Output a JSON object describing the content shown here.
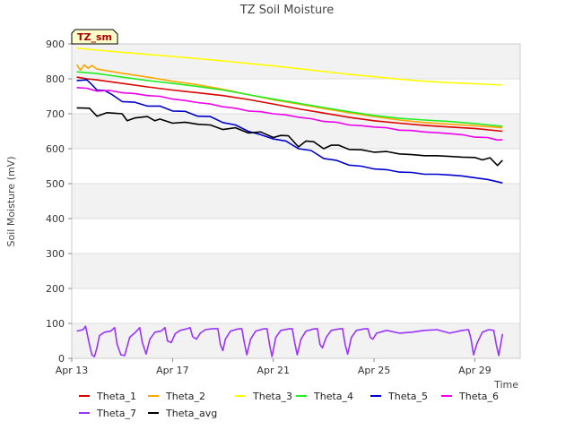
{
  "chart_data": {
    "type": "line",
    "title": "TZ Soil Moisture",
    "xlabel": "Time",
    "ylabel": "Soil Moisture (mV)",
    "badge": "TZ_sm",
    "ylim": [
      0,
      900
    ],
    "xlim": [
      13,
      30.8
    ],
    "yticks": [
      0,
      100,
      200,
      300,
      400,
      500,
      600,
      700,
      800,
      900
    ],
    "xticks": [
      {
        "value": 13,
        "label": "Apr 13"
      },
      {
        "value": 17,
        "label": "Apr 17"
      },
      {
        "value": 21,
        "label": "Apr 21"
      },
      {
        "value": 25,
        "label": "Apr 25"
      },
      {
        "value": 29,
        "label": "Apr 29"
      }
    ],
    "bands": [
      [
        0,
        100
      ],
      [
        200,
        300
      ],
      [
        400,
        500
      ],
      [
        600,
        700
      ],
      [
        800,
        900
      ]
    ],
    "series": [
      {
        "name": "Theta_1",
        "color": "#dd0000",
        "x": [
          13.2,
          13.6,
          14,
          15,
          16,
          17,
          18,
          19,
          20,
          21,
          22,
          23,
          24,
          25,
          26,
          27,
          28,
          29,
          30.1
        ],
        "y": [
          805,
          800,
          797,
          787,
          777,
          768,
          760,
          752,
          741,
          728,
          714,
          702,
          690,
          680,
          673,
          667,
          662,
          658,
          650
        ]
      },
      {
        "name": "Theta_2",
        "color": "#ffa500",
        "x": [
          13.2,
          13.35,
          13.5,
          13.65,
          13.8,
          14,
          15,
          16,
          17,
          18,
          19,
          20,
          21,
          22,
          23,
          24,
          25,
          26,
          27,
          28,
          29,
          30.1
        ],
        "y": [
          840,
          825,
          840,
          830,
          838,
          828,
          816,
          805,
          793,
          783,
          770,
          755,
          740,
          728,
          715,
          703,
          692,
          682,
          675,
          670,
          666,
          660
        ]
      },
      {
        "name": "Theta_3",
        "color": "#ffff00",
        "x": [
          13.2,
          14,
          15,
          16,
          17,
          18,
          19,
          20,
          21,
          22,
          23,
          24,
          25,
          26,
          27,
          28,
          29,
          30.1
        ],
        "y": [
          888,
          882,
          876,
          870,
          864,
          858,
          851,
          844,
          837,
          829,
          821,
          813,
          806,
          799,
          793,
          789,
          786,
          782
        ]
      },
      {
        "name": "Theta_4",
        "color": "#22ee22",
        "x": [
          13.2,
          14,
          15,
          16,
          17,
          18,
          19,
          20,
          21,
          22,
          23,
          24,
          25,
          26,
          27,
          28,
          29,
          30.1
        ],
        "y": [
          820,
          815,
          805,
          795,
          787,
          778,
          768,
          755,
          742,
          730,
          718,
          706,
          695,
          687,
          682,
          678,
          672,
          664
        ]
      },
      {
        "name": "Theta_5",
        "color": "#0000cc",
        "x": [
          13.2,
          13.6,
          13.8,
          14.0,
          14.3,
          14.6,
          15.0,
          15.5,
          16.0,
          16.5,
          17.0,
          17.5,
          18.0,
          18.5,
          19.0,
          19.5,
          20.0,
          20.5,
          21.0,
          21.5,
          22.0,
          22.5,
          23.0,
          23.5,
          24.0,
          24.5,
          25.0,
          25.5,
          26.0,
          26.5,
          27.0,
          27.5,
          28.0,
          28.5,
          29.0,
          29.5,
          30.1
        ],
        "y": [
          795,
          797,
          783,
          768,
          767,
          755,
          735,
          733,
          722,
          722,
          708,
          707,
          693,
          692,
          675,
          668,
          650,
          640,
          628,
          622,
          600,
          595,
          572,
          567,
          553,
          550,
          542,
          540,
          533,
          532,
          527,
          527,
          525,
          522,
          517,
          512,
          502
        ]
      },
      {
        "name": "Theta_6",
        "color": "#ee00ee",
        "x": [
          13.2,
          13.6,
          14.0,
          14.5,
          15.0,
          15.5,
          16.0,
          16.5,
          17.0,
          17.5,
          18.0,
          18.5,
          19.0,
          19.5,
          20.0,
          20.5,
          21.0,
          21.5,
          22.0,
          22.5,
          23.0,
          23.5,
          24.0,
          24.5,
          25.0,
          25.5,
          26.0,
          26.5,
          27.0,
          27.5,
          28.0,
          28.5,
          29.0,
          29.5,
          29.9,
          30.1
        ],
        "y": [
          775,
          773,
          765,
          767,
          760,
          758,
          752,
          750,
          742,
          738,
          732,
          728,
          720,
          716,
          708,
          706,
          700,
          697,
          690,
          686,
          678,
          676,
          668,
          666,
          662,
          660,
          653,
          652,
          648,
          646,
          643,
          640,
          633,
          632,
          625,
          626
        ]
      },
      {
        "name": "Theta_7",
        "color": "#9933ff",
        "x": [
          13.2,
          13.45,
          13.55,
          13.7,
          13.8,
          13.9,
          14.0,
          14.1,
          14.3,
          14.55,
          14.7,
          14.8,
          14.95,
          15.1,
          15.3,
          15.55,
          15.7,
          15.8,
          15.95,
          16.1,
          16.3,
          16.55,
          16.7,
          16.8,
          16.95,
          17.1,
          17.3,
          17.55,
          17.7,
          17.8,
          17.95,
          18.1,
          18.3,
          18.6,
          18.8,
          18.9,
          19.0,
          19.1,
          19.3,
          19.6,
          19.75,
          19.85,
          19.95,
          20.1,
          20.3,
          20.6,
          20.75,
          20.85,
          20.95,
          21.1,
          21.3,
          21.6,
          21.75,
          21.85,
          21.95,
          22.1,
          22.3,
          22.6,
          22.75,
          22.85,
          22.95,
          23.1,
          23.3,
          23.6,
          23.75,
          23.85,
          23.95,
          24.1,
          24.3,
          24.6,
          24.75,
          24.85,
          24.95,
          25.1,
          25.5,
          26.0,
          26.5,
          27.0,
          27.5,
          28.0,
          28.5,
          28.75,
          28.85,
          28.95,
          29.1,
          29.3,
          29.55,
          29.75,
          29.85,
          29.95,
          30.1
        ],
        "y": [
          78,
          82,
          92,
          40,
          10,
          5,
          30,
          65,
          75,
          78,
          88,
          40,
          10,
          8,
          60,
          76,
          88,
          45,
          12,
          55,
          75,
          78,
          88,
          50,
          45,
          70,
          80,
          84,
          88,
          62,
          55,
          72,
          82,
          85,
          85,
          40,
          22,
          55,
          78,
          84,
          85,
          45,
          10,
          55,
          78,
          84,
          85,
          40,
          5,
          60,
          80,
          84,
          85,
          45,
          10,
          55,
          78,
          84,
          85,
          40,
          30,
          60,
          80,
          84,
          85,
          40,
          12,
          60,
          80,
          84,
          85,
          60,
          55,
          72,
          80,
          72,
          75,
          80,
          82,
          72,
          80,
          82,
          55,
          10,
          45,
          75,
          82,
          80,
          40,
          8,
          70
        ]
      },
      {
        "name": "Theta_avg",
        "color": "#000000",
        "x": [
          13.2,
          13.7,
          14.0,
          14.4,
          15.0,
          15.2,
          15.5,
          16.0,
          16.3,
          16.5,
          17.0,
          17.5,
          18.0,
          18.5,
          19.0,
          19.5,
          20.0,
          20.5,
          21.0,
          21.3,
          21.6,
          22.0,
          22.3,
          22.6,
          23.0,
          23.3,
          23.6,
          24.0,
          24.5,
          25.0,
          25.5,
          26.0,
          26.5,
          27.0,
          27.5,
          28.0,
          28.5,
          29.0,
          29.3,
          29.6,
          29.9,
          30.1
        ],
        "y": [
          717,
          716,
          693,
          703,
          700,
          680,
          688,
          692,
          680,
          685,
          673,
          676,
          670,
          668,
          655,
          660,
          645,
          648,
          632,
          638,
          637,
          605,
          622,
          620,
          600,
          610,
          610,
          598,
          597,
          590,
          592,
          585,
          583,
          580,
          580,
          578,
          576,
          575,
          568,
          574,
          552,
          567
        ]
      }
    ],
    "legend": [
      "Theta_1",
      "Theta_2",
      "Theta_3",
      "Theta_4",
      "Theta_5",
      "Theta_6",
      "Theta_7",
      "Theta_avg"
    ]
  }
}
